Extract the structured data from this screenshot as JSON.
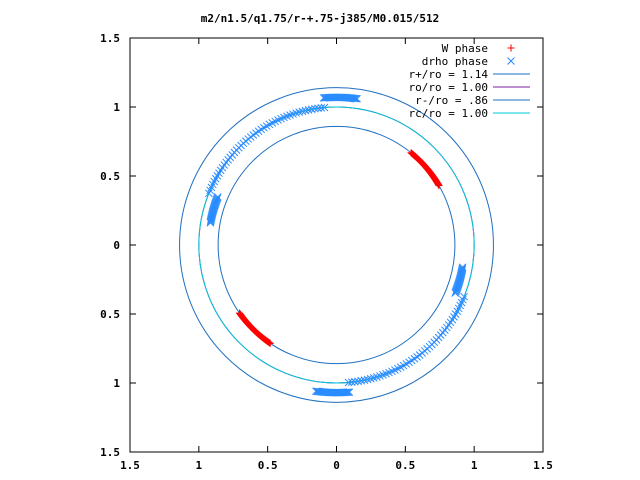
{
  "chart_data": {
    "type": "scatter",
    "title": "m2/n1.5/q1.75/r-+.75-j385/M0.015/512",
    "xlabel": "",
    "ylabel": "",
    "xlim": [
      -1.5,
      1.5
    ],
    "ylim": [
      -1.5,
      1.5
    ],
    "xticks": [
      "1.5",
      "1",
      "0.5",
      "0",
      "0.5",
      "1",
      "1.5"
    ],
    "yticks": [
      "1.5",
      "1",
      "0.5",
      "0",
      "0.5",
      "1",
      "1.5"
    ],
    "legend_position": "top-right",
    "grid": false,
    "circles": [
      {
        "label": "r+/ro = 1.14",
        "r": 1.14,
        "color": "#1f6fc0"
      },
      {
        "label": "ro/ro = 1.00",
        "r": 1.0,
        "color": "#7a1fa0"
      },
      {
        "label": "r-/ro = .86",
        "r": 0.86,
        "color": "#1f6fc0"
      },
      {
        "label": "rc/ro = 1.00",
        "r": 1.0,
        "color": "#00c8d8"
      }
    ],
    "series": [
      {
        "name": "W phase",
        "marker": "plus",
        "color": "#ff0000",
        "arcs": [
          {
            "r": 0.86,
            "start_deg": 30,
            "end_deg": 51,
            "n": 55
          },
          {
            "r": 0.86,
            "start_deg": 215,
            "end_deg": 236,
            "n": 55
          }
        ]
      },
      {
        "name": "drho phase",
        "marker": "cross",
        "color": "#2a8cff",
        "arcs": [
          {
            "r": 1.07,
            "start_deg": 82,
            "end_deg": 95,
            "n": 30
          },
          {
            "r": 1.0,
            "start_deg": 95,
            "end_deg": 158,
            "n": 48
          },
          {
            "r": 0.93,
            "start_deg": 158,
            "end_deg": 170,
            "n": 25
          },
          {
            "r": 1.07,
            "start_deg": 262,
            "end_deg": 275,
            "n": 30
          },
          {
            "r": 1.0,
            "start_deg": 275,
            "end_deg": 338,
            "n": 48
          },
          {
            "r": 0.93,
            "start_deg": 338,
            "end_deg": 350,
            "n": 25
          }
        ]
      }
    ]
  }
}
